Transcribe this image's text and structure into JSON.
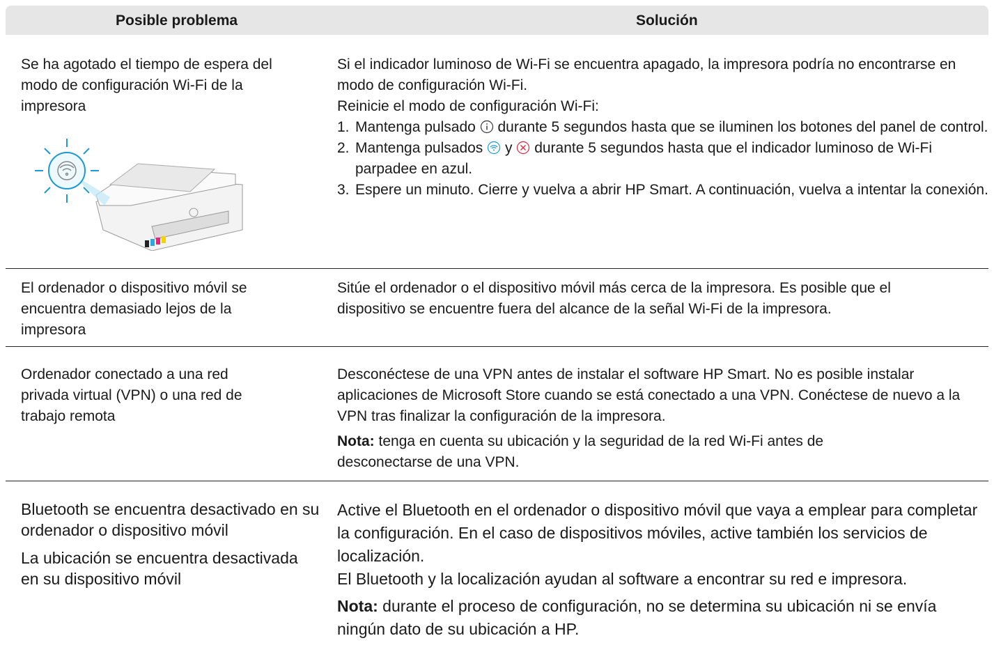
{
  "header": {
    "problem": "Posible problema",
    "solution": "Solución"
  },
  "rows": [
    {
      "problem": [
        "Se ha agotado el tiempo de espera del modo de configuración Wi-Fi de la impresora"
      ],
      "solution": {
        "paragraphs": [
          "Si el indicador luminoso de Wi-Fi se encuentra apagado, la impresora podría no encontrarse en modo de configuración Wi-Fi.",
          "Reinicie el modo de configuración Wi-Fi:"
        ],
        "steps": [
          {
            "number": "1.",
            "before": "Mantenga pulsado",
            "after": "durante 5 segundos hasta que se iluminen los botones del panel de control."
          },
          {
            "number": "2.",
            "before": "Mantenga pulsados",
            "middle": "y",
            "after": "durante 5 segundos hasta que el indicador luminoso de Wi-Fi parpadee en azul."
          },
          {
            "number": "3.",
            "text": "Espere un minuto. Cierre y vuelva a abrir HP Smart. A continuación, vuelva a intentar la conexión."
          }
        ]
      }
    },
    {
      "problem": [
        "El ordenador o dispositivo móvil se encuentra demasiado lejos de la impresora"
      ],
      "solution": {
        "paragraphs": [
          "Sitúe el ordenador o el dispositivo móvil más cerca de la impresora. Es posible que el dispositivo se encuentre fuera del alcance de la señal Wi-Fi de la impresora."
        ]
      }
    },
    {
      "problem": [
        "Ordenador conectado a una red privada virtual (VPN) o una red de trabajo remota"
      ],
      "solution": {
        "paragraphs": [
          "Desconéctese de una VPN antes de instalar el software HP Smart. No es posible instalar aplicaciones de Microsoft Store cuando se está conectado a una VPN. Conéctese de nuevo a la VPN tras finalizar la configuración de la impresora."
        ],
        "note": {
          "label": "Nota:",
          "text": "tenga en cuenta su ubicación y la seguridad de la red Wi-Fi antes de desconectarse de una VPN."
        }
      }
    },
    {
      "problem": [
        "Bluetooth se encuentra desactivado en su ordenador o dispositivo móvil",
        "La ubicación se encuentra desactivada en su dispositivo móvil"
      ],
      "solution": {
        "paragraphs": [
          "Active el Bluetooth en el ordenador o dispositivo móvil que vaya a emplear para completar la configuración. En el caso de dispositivos móviles, active también los servicios de localización.",
          "El Bluetooth y la localización ayudan al software a encontrar su red e impresora."
        ],
        "note": {
          "label": "Nota:",
          "text": "durante el proceso de configuración, no se determina su ubicación ni se envía ningún dato de su ubicación a HP."
        }
      }
    }
  ]
}
